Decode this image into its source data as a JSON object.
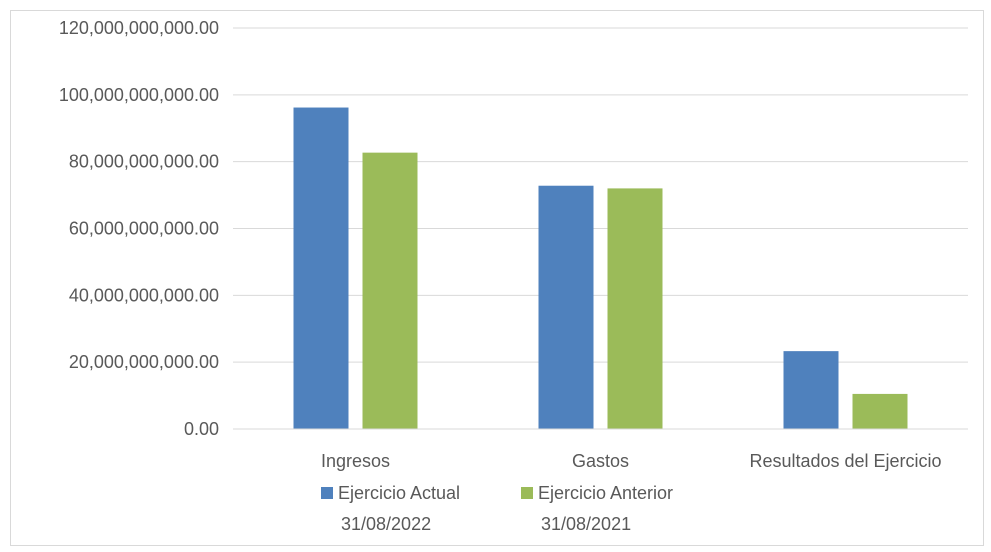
{
  "chart_data": {
    "type": "bar",
    "title": "",
    "xlabel": "",
    "ylabel": "",
    "categories": [
      "Ingresos",
      "Gastos",
      "Resultados del Ejercicio"
    ],
    "series": [
      {
        "name": "Ejercicio Actual 31/08/2022",
        "name_lines": [
          "Ejercicio Actual",
          "31/08/2022"
        ],
        "color": "#4f81bd",
        "values": [
          96200000000,
          72800000000,
          23300000000
        ]
      },
      {
        "name": "Ejercicio Anterior 31/08/2021",
        "name_lines": [
          "Ejercicio Anterior",
          "31/08/2021"
        ],
        "color": "#9bbb59",
        "values": [
          82700000000,
          72000000000,
          10500000000
        ]
      }
    ],
    "ylim": [
      0,
      120000000000
    ],
    "yticks": [
      0,
      20000000000,
      40000000000,
      60000000000,
      80000000000,
      100000000000,
      120000000000
    ],
    "ytick_labels": [
      "0.00",
      "20,000,000,000.00",
      "40,000,000,000.00",
      "60,000,000,000.00",
      "80,000,000,000.00",
      "100,000,000,000.00",
      "120,000,000,000.00"
    ],
    "grid": true,
    "legend_position": "bottom"
  }
}
